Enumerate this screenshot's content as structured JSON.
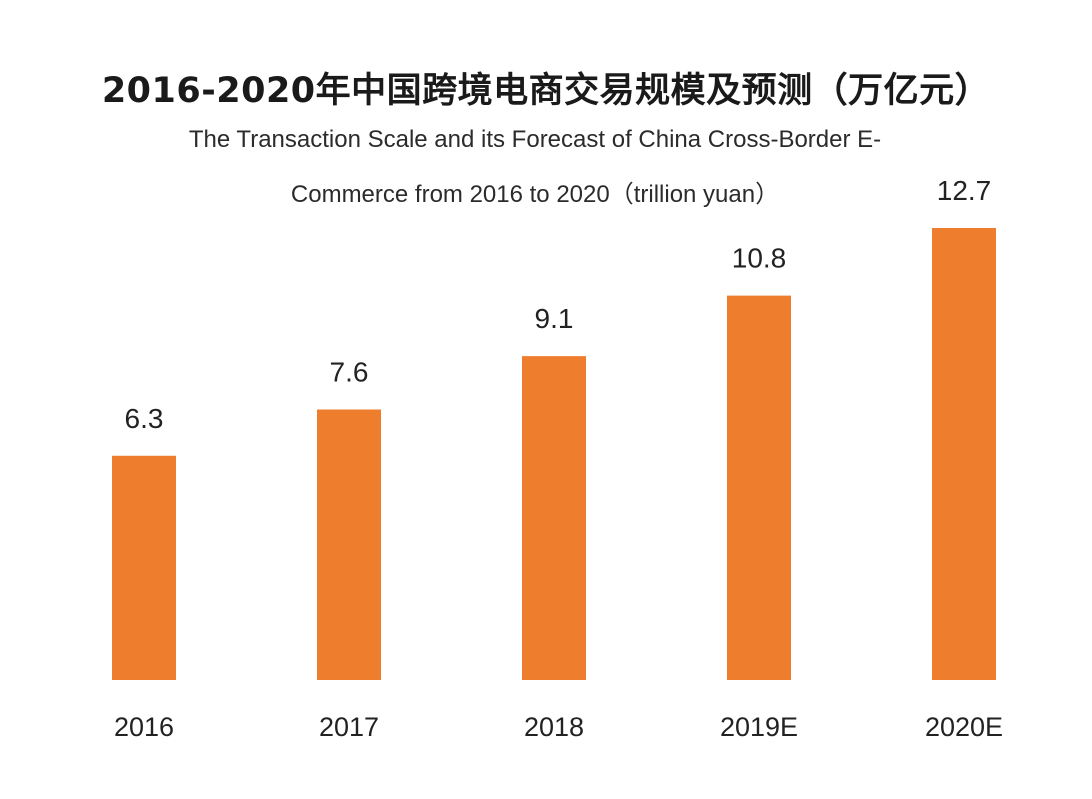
{
  "chart_data": {
    "type": "bar",
    "title": "2016-2020年中国跨境电商交易规模及预测（万亿元）",
    "subtitle": [
      "The Transaction Scale and its Forecast of China Cross-Border E-",
      "Commerce from 2016 to 2020（trillion yuan）"
    ],
    "categories": [
      "2016",
      "2017",
      "2018",
      "2019E",
      "2020E"
    ],
    "values": [
      6.3,
      7.6,
      9.1,
      10.8,
      12.7
    ],
    "value_labels": [
      "6.3",
      "7.6",
      "9.1",
      "10.8",
      "12.7"
    ],
    "xlabel": "",
    "ylabel": "",
    "ylim": [
      0,
      12.7
    ],
    "grid": false,
    "legend": "none",
    "bar_color": "#ee7d2e"
  }
}
